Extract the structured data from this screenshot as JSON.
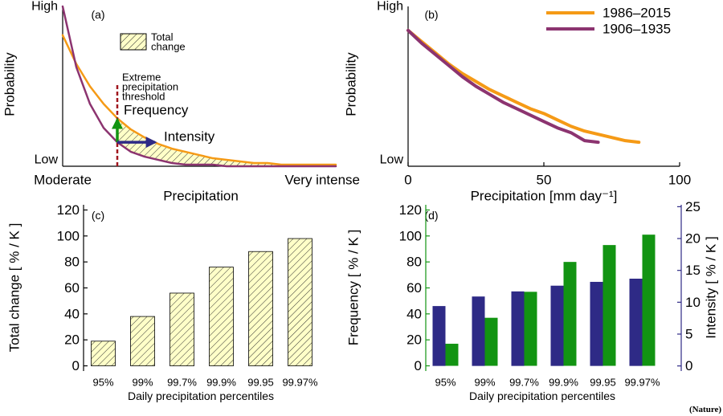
{
  "chart_data": [
    {
      "type": "line",
      "panel_label": "(a)",
      "xlabel": "Precipitation",
      "ylabel": "Probability",
      "x": [
        0,
        0.05,
        0.1,
        0.15,
        0.2,
        0.25,
        0.3,
        0.35,
        0.4,
        0.45,
        0.5,
        0.55,
        0.6,
        0.65,
        0.7,
        0.75,
        0.8,
        0.85,
        0.9,
        0.95,
        1
      ],
      "xlim": [
        0,
        1
      ],
      "xticks": [
        {
          "value": 0,
          "label": "Moderate"
        },
        {
          "value": 1,
          "label": "Very intense"
        }
      ],
      "ylim": [
        0,
        1
      ],
      "yticks": [
        {
          "value": 0.04,
          "label": "Low"
        },
        {
          "value": 1,
          "label": "High"
        }
      ],
      "series": [
        {
          "color": "#f59a16",
          "values": [
            0.82,
            0.64,
            0.5,
            0.39,
            0.3,
            0.23,
            0.18,
            0.14,
            0.11,
            0.09,
            0.07,
            0.05,
            0.04,
            0.03,
            0.02,
            0.02,
            0.01,
            0.01,
            0.01,
            0.01,
            0.01
          ]
        },
        {
          "color": "#8c3470",
          "values": [
            1.0,
            0.62,
            0.39,
            0.24,
            0.15,
            0.09,
            0.06,
            0.04,
            0.02,
            0.01,
            0.01,
            0.01,
            0,
            0,
            0,
            0,
            0,
            0,
            0,
            0,
            0
          ]
        }
      ],
      "threshold": 0.2,
      "annotations": {
        "total_change": [
          "Total",
          "change"
        ],
        "threshold_label": [
          "Extreme",
          "precipitation",
          "threshold"
        ],
        "frequency": "Frequency",
        "intensity": "Intensity"
      }
    },
    {
      "type": "line",
      "panel_label": "(b)",
      "xlabel": "Precipitation [mm day⁻¹]",
      "ylabel": "Probability",
      "x": [
        0,
        5,
        10,
        15,
        20,
        25,
        30,
        35,
        40,
        45,
        50,
        55,
        60,
        65,
        70,
        75,
        80,
        85
      ],
      "xlim": [
        0,
        100
      ],
      "xticks": [
        0,
        50,
        100
      ],
      "ylim": [
        0,
        1
      ],
      "yticks": [
        {
          "value": 0.04,
          "label": "Low"
        },
        {
          "value": 1,
          "label": "High"
        }
      ],
      "series": [
        {
          "name": "1986–2015",
          "color": "#f59a16",
          "values": [
            0.85,
            0.78,
            0.71,
            0.64,
            0.58,
            0.53,
            0.48,
            0.44,
            0.4,
            0.36,
            0.33,
            0.29,
            0.25,
            0.22,
            0.2,
            0.18,
            0.16,
            0.15
          ]
        },
        {
          "name": "1906–1935",
          "color": "#8c3470",
          "values": [
            0.85,
            0.77,
            0.7,
            0.63,
            0.56,
            0.5,
            0.45,
            0.4,
            0.36,
            0.32,
            0.28,
            0.24,
            0.21,
            0.16,
            0.15,
            null,
            null,
            null
          ]
        }
      ]
    },
    {
      "type": "bar",
      "panel_label": "(c)",
      "xlabel": "Daily precipitation percentiles",
      "ylabel": "Total change [ % / K ]",
      "categories": [
        "95%",
        "99%",
        "99.7%",
        "99.9%",
        "99.95",
        "99.97%"
      ],
      "values": [
        19,
        38,
        56,
        76,
        88,
        98
      ],
      "color": "#ffffc8",
      "hatch": true,
      "ylim": [
        -4,
        124
      ],
      "yticks": [
        0,
        20,
        40,
        60,
        80,
        100,
        120
      ]
    },
    {
      "type": "bar",
      "panel_label": "(d)",
      "xlabel": "Daily precipitation percentiles",
      "ylabel": "Frequency [ % / K ]",
      "y2label": "Intensity [ % / K ]",
      "categories": [
        "95%",
        "99%",
        "99.7%",
        "99.9%",
        "99.95",
        "99.97%"
      ],
      "series": [
        {
          "color": "#2e2a86",
          "axis": "y2",
          "values": [
            9.4,
            10.9,
            11.7,
            12.6,
            13.2,
            13.7
          ]
        },
        {
          "color": "#129412",
          "values": [
            17,
            37,
            57,
            80,
            93,
            101
          ]
        }
      ],
      "ylim": [
        -4,
        124
      ],
      "yticks": [
        0,
        20,
        40,
        60,
        80,
        100,
        120
      ],
      "y2lim": [
        -0.8,
        25.3
      ],
      "y2ticks": [
        0,
        5,
        10,
        15,
        20,
        25
      ]
    }
  ],
  "source": "(Nature)"
}
